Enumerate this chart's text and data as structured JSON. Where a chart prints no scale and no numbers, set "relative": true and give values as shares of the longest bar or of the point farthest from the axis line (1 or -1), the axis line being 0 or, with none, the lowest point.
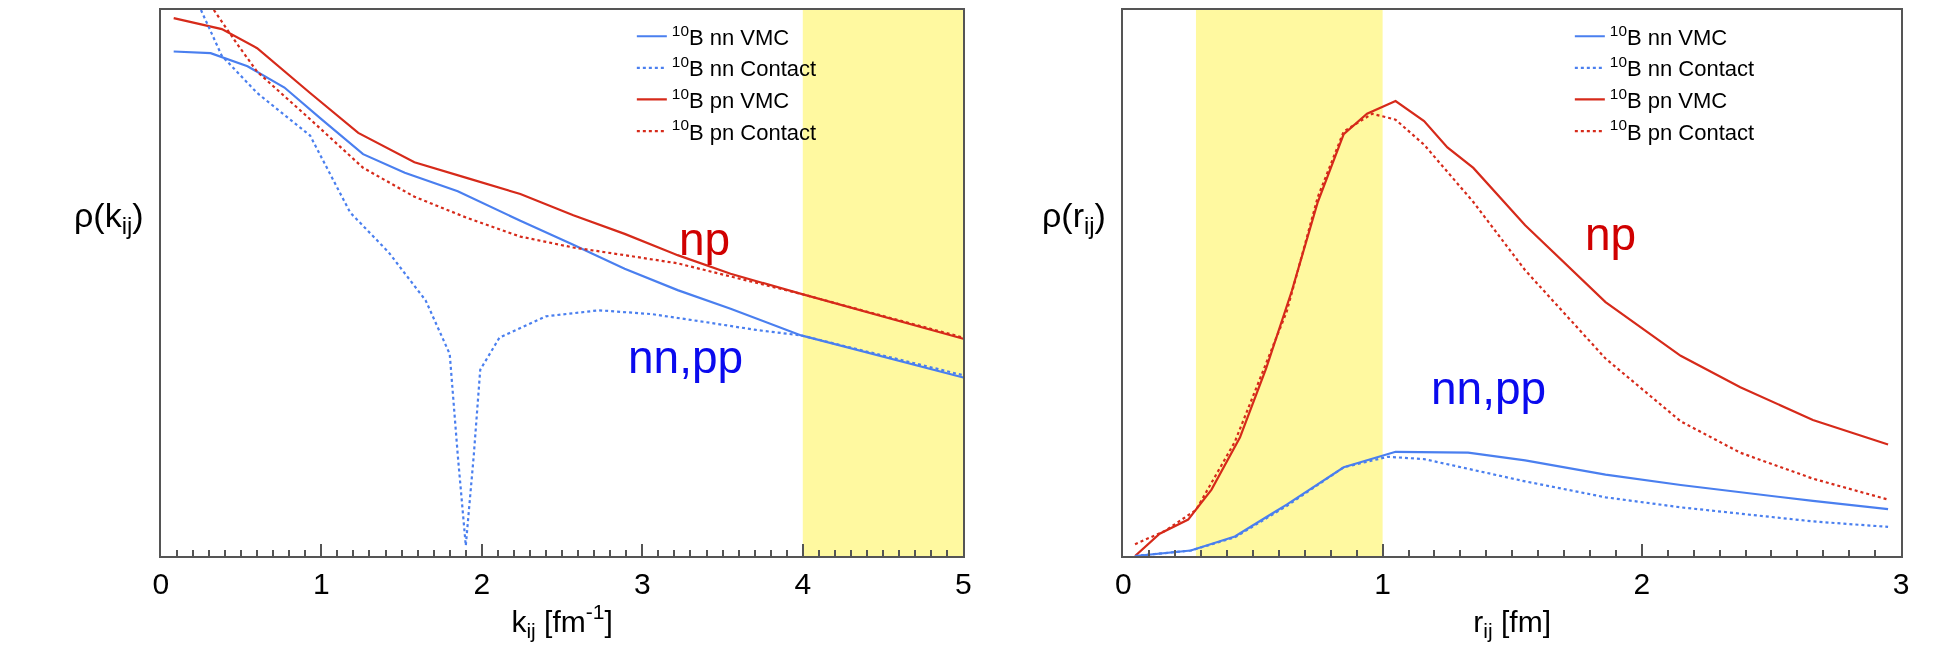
{
  "chart_data": [
    {
      "type": "line",
      "relative": true,
      "xlabel": "k$_{ij}$ [fm$^{-1}$]",
      "ylabel": "ρ(k$_{ij}$)",
      "xlim": [
        0,
        5
      ],
      "xticks": [
        0,
        1,
        2,
        3,
        4,
        5
      ],
      "grid": false,
      "legend": "top right",
      "marker": "none",
      "series": [
        {
          "name": "$^{10}$B nn VMC",
          "color": "#4a7fef",
          "line_style": "solid",
          "x": [
            0.08,
            0.31,
            0.54,
            0.77,
            1.0,
            1.26,
            1.52,
            1.85,
            2.24,
            2.57,
            2.89,
            3.22,
            3.55,
            3.99,
            5.0
          ],
          "values": [
            0.924,
            0.921,
            0.897,
            0.858,
            0.8,
            0.736,
            0.702,
            0.668,
            0.614,
            0.57,
            0.526,
            0.487,
            0.453,
            0.404,
            0.327
          ]
        },
        {
          "name": "$^{10}$B nn Contact",
          "color": "#4a7fef",
          "line_style": "dotted",
          "x": [
            0.25,
            0.38,
            0.6,
            0.93,
            1.18,
            1.42,
            1.65,
            1.8,
            1.85,
            1.9,
            1.95,
            1.99,
            2.11,
            2.4,
            2.73,
            3.06,
            3.38,
            3.71,
            3.99,
            5.0
          ],
          "values": [
            1.0,
            0.916,
            0.848,
            0.77,
            0.629,
            0.556,
            0.468,
            0.37,
            0.185,
            0.019,
            0.185,
            0.341,
            0.4,
            0.439,
            0.45,
            0.443,
            0.429,
            0.414,
            0.404,
            0.331
          ]
        },
        {
          "name": "$^{10}$B pn VMC",
          "color": "#d62a1a",
          "line_style": "solid",
          "x": [
            0.08,
            0.38,
            0.6,
            0.93,
            1.23,
            1.58,
            1.91,
            2.24,
            2.57,
            2.89,
            3.22,
            3.55,
            3.99,
            5.0
          ],
          "values": [
            0.985,
            0.965,
            0.93,
            0.848,
            0.775,
            0.721,
            0.692,
            0.663,
            0.624,
            0.59,
            0.551,
            0.517,
            0.48,
            0.398
          ]
        },
        {
          "name": "$^{10}$B pn Contact",
          "color": "#d62a1a",
          "line_style": "dotted",
          "x": [
            0.33,
            0.47,
            0.6,
            0.93,
            1.26,
            1.58,
            1.91,
            2.24,
            2.57,
            2.89,
            3.22,
            3.55,
            3.99,
            5.0
          ],
          "values": [
            1.0,
            0.94,
            0.887,
            0.8,
            0.711,
            0.658,
            0.619,
            0.585,
            0.565,
            0.551,
            0.536,
            0.512,
            0.48,
            0.4
          ]
        }
      ],
      "bands": [
        {
          "axis": "x",
          "from": 4,
          "to": 5,
          "color": "#fff9a0"
        }
      ],
      "annotations": [
        "np",
        "nn,pp"
      ]
    },
    {
      "type": "line",
      "relative": true,
      "xlabel": "r$_{ij}$ [fm]",
      "ylabel": "ρ(r$_{ij}$)",
      "xlim": [
        0,
        3
      ],
      "xticks": [
        0,
        1,
        2,
        3
      ],
      "grid": false,
      "legend": "top right",
      "marker": "none",
      "series": [
        {
          "name": "$^{10}$B nn VMC",
          "color": "#4a7fef",
          "line_style": "solid",
          "x": [
            0.045,
            0.26,
            0.43,
            0.63,
            0.85,
            1.05,
            1.33,
            1.55,
            1.86,
            2.15,
            2.66,
            2.95
          ],
          "values": [
            0,
            0.012,
            0.043,
            0.113,
            0.195,
            0.229,
            0.227,
            0.21,
            0.179,
            0.156,
            0.121,
            0.103
          ]
        },
        {
          "name": "$^{10}$B nn Contact",
          "color": "#4a7fef",
          "line_style": "dotted",
          "x": [
            0.045,
            0.26,
            0.43,
            0.63,
            0.85,
            1.02,
            1.16,
            1.55,
            1.86,
            2.15,
            2.66,
            2.95
          ],
          "values": [
            0,
            0.012,
            0.041,
            0.11,
            0.195,
            0.218,
            0.213,
            0.164,
            0.129,
            0.107,
            0.076,
            0.064
          ]
        },
        {
          "name": "$^{10}$B pn VMC",
          "color": "#d62a1a",
          "line_style": "solid",
          "x": [
            0.045,
            0.14,
            0.25,
            0.34,
            0.45,
            0.55,
            0.65,
            0.75,
            0.85,
            0.94,
            1.05,
            1.16,
            1.25,
            1.35,
            1.55,
            1.86,
            2.15,
            2.38,
            2.66,
            2.95
          ],
          "values": [
            0,
            0.049,
            0.08,
            0.146,
            0.261,
            0.411,
            0.583,
            0.778,
            0.927,
            0.972,
            1.0,
            0.956,
            0.898,
            0.853,
            0.727,
            0.558,
            0.44,
            0.371,
            0.299,
            0.245
          ]
        },
        {
          "name": "$^{10}$B pn Contact",
          "color": "#d62a1a",
          "line_style": "dotted",
          "x": [
            0.045,
            0.16,
            0.28,
            0.43,
            0.63,
            0.75,
            0.85,
            0.96,
            1.05,
            1.16,
            1.35,
            1.55,
            1.86,
            2.15,
            2.38,
            2.66,
            2.95
          ],
          "values": [
            0.026,
            0.055,
            0.101,
            0.251,
            0.537,
            0.789,
            0.933,
            0.972,
            0.959,
            0.904,
            0.778,
            0.628,
            0.434,
            0.296,
            0.227,
            0.17,
            0.124
          ]
        }
      ],
      "bands": [
        {
          "axis": "x",
          "from": 0.28,
          "to": 1.0,
          "color": "#fff9a0"
        }
      ],
      "annotations": [
        "np",
        "nn,pp"
      ]
    }
  ]
}
